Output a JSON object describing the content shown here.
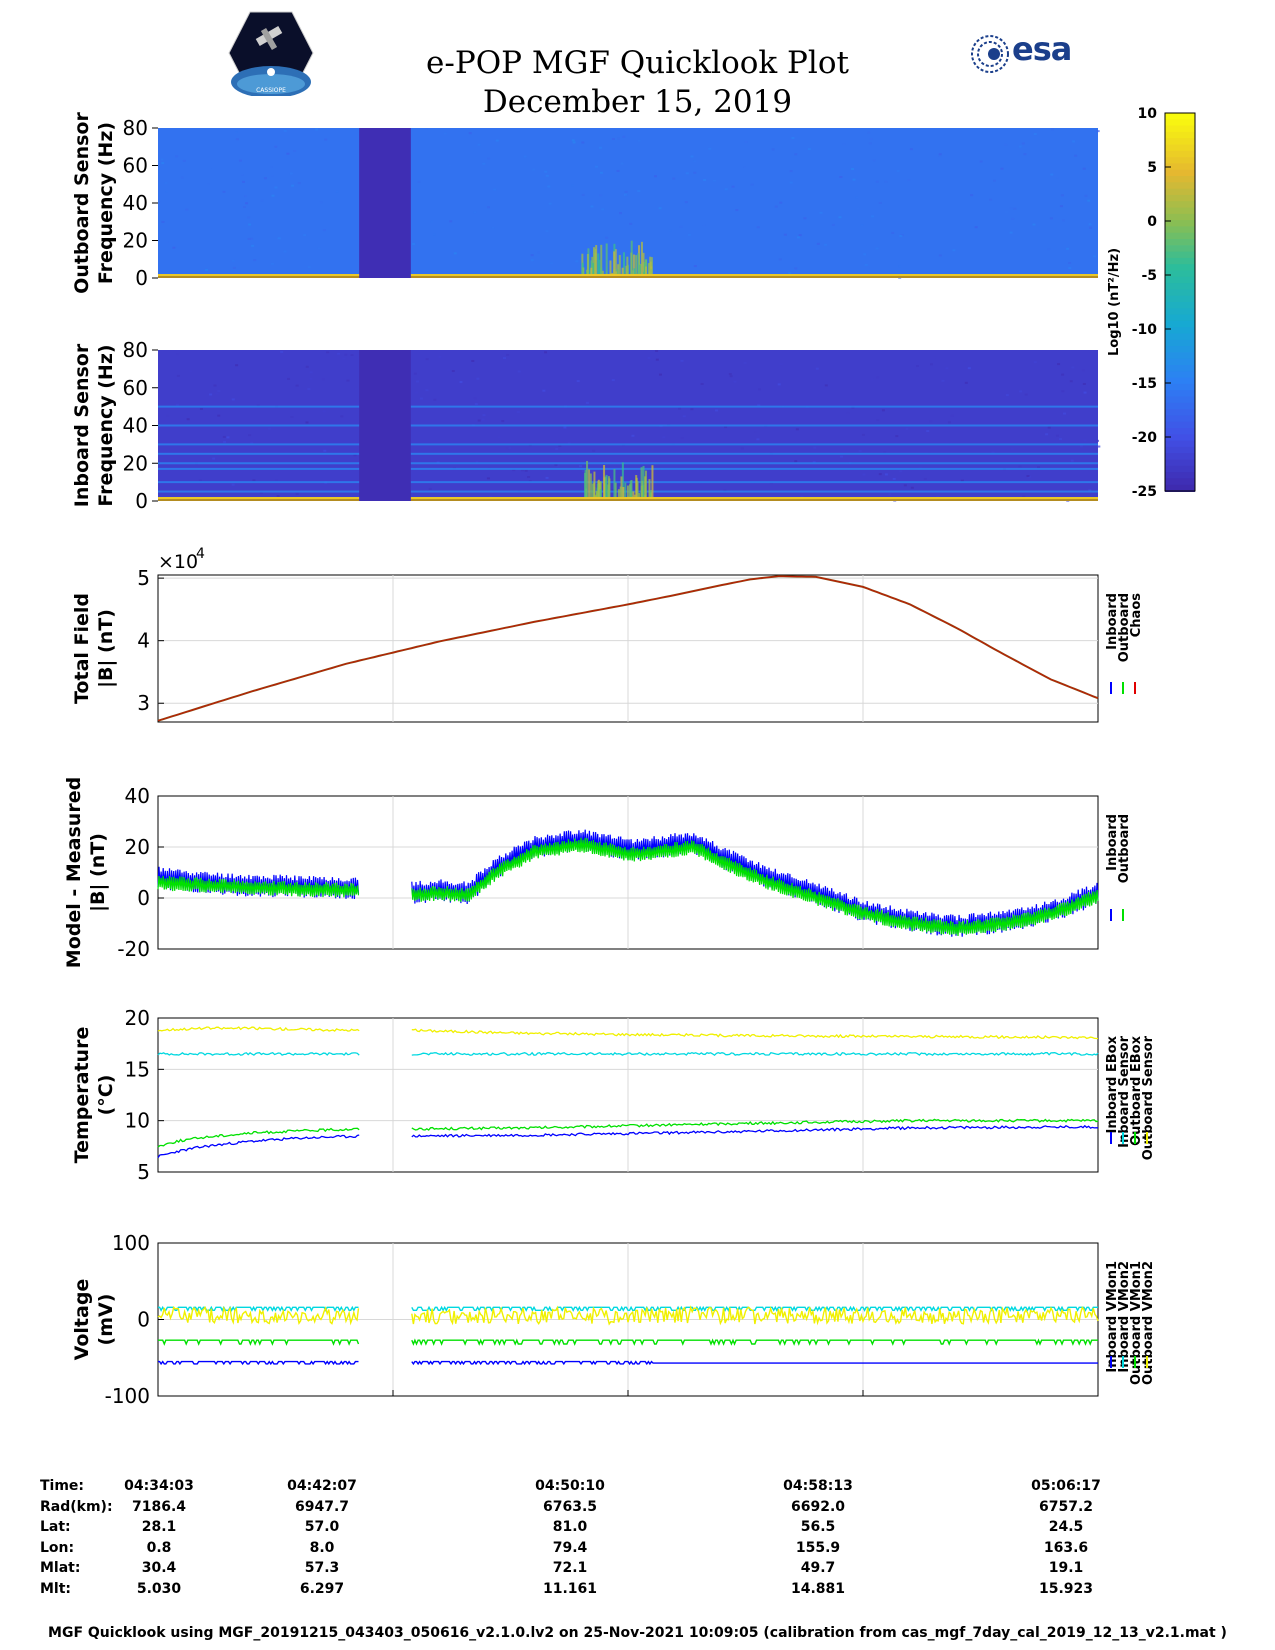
{
  "header": {
    "title": "e-POP MGF Quicklook Plot",
    "date": "December 15, 2019",
    "left_logo_text": "CASSIOPE",
    "right_logo_text": "esa"
  },
  "colorbar": {
    "label": "Log10 (nT²/Hz)",
    "ticks": [
      10,
      5,
      0,
      -5,
      -10,
      -15,
      -20,
      -25
    ],
    "range": [
      -25,
      10
    ]
  },
  "chart_data": [
    {
      "type": "heatmap",
      "id": "outboard",
      "ylabel_line1": "Outboard Sensor",
      "ylabel_line2": "Frequency (Hz)",
      "ylim": [
        0,
        80
      ],
      "yticks": [
        0,
        20,
        40,
        60,
        80
      ],
      "background_level": -16,
      "gap_time_frac": [
        0.214,
        0.269
      ],
      "gap_level": -24,
      "burst_time_frac": [
        0.45,
        0.525
      ],
      "burst_max_freq": 22
    },
    {
      "type": "heatmap",
      "id": "inboard",
      "ylabel_line1": "Inboard Sensor",
      "ylabel_line2": "Frequency (Hz)",
      "ylim": [
        0,
        80
      ],
      "yticks": [
        0,
        20,
        40,
        60,
        80
      ],
      "background_level": -22,
      "harmonic_lines_hz": [
        5,
        10,
        17,
        20,
        25,
        30,
        40,
        50
      ],
      "gap_time_frac": [
        0.214,
        0.269
      ],
      "burst_time_frac": [
        0.45,
        0.525
      ]
    },
    {
      "type": "line",
      "id": "total-field",
      "ylabel_line1": "Total Field",
      "ylabel_line2": "|B| (nT)",
      "multiplier": "×10",
      "multiplier_exp": "4",
      "ylim": [
        2.7,
        5.05
      ],
      "yticks": [
        3,
        4,
        5
      ],
      "legend": [
        "Inboard",
        "Outboard",
        "Chaos"
      ],
      "legend_colors": [
        "#0000ff",
        "#00e000",
        "#e00000"
      ],
      "x_frac": [
        0,
        0.1,
        0.2,
        0.3,
        0.4,
        0.5,
        0.55,
        0.6,
        0.63,
        0.66,
        0.7,
        0.75,
        0.8,
        0.85,
        0.9,
        0.95,
        1.0
      ],
      "series": [
        {
          "name": "Chaos",
          "values": [
            2.72,
            3.19,
            3.63,
            3.99,
            4.3,
            4.58,
            4.73,
            4.89,
            4.98,
            5.03,
            5.02,
            4.86,
            4.58,
            4.2,
            3.78,
            3.38,
            3.08
          ]
        }
      ]
    },
    {
      "type": "line",
      "id": "model-measured",
      "ylabel_line1": "Model - Measured",
      "ylabel_line2": "|B| (nT)",
      "ylim": [
        -20,
        40
      ],
      "yticks": [
        -20,
        0,
        20,
        40
      ],
      "legend": [
        "Inboard",
        "Outboard"
      ],
      "legend_colors": [
        "#0000ff",
        "#00e000"
      ],
      "gap_time_frac": [
        0.214,
        0.269
      ],
      "x_frac": [
        0,
        0.05,
        0.1,
        0.15,
        0.214,
        0.27,
        0.3,
        0.33,
        0.36,
        0.4,
        0.45,
        0.5,
        0.53,
        0.57,
        0.6,
        0.65,
        0.7,
        0.75,
        0.8,
        0.85,
        0.88,
        0.92,
        0.96,
        1.0
      ],
      "series": [
        {
          "name": "Inboard",
          "values": [
            8,
            6,
            5,
            4.5,
            4,
            2,
            3,
            2,
            12,
            20,
            23,
            19,
            20,
            22,
            16,
            8,
            2,
            -5,
            -9,
            -11,
            -10,
            -8,
            -4,
            2
          ]
        },
        {
          "name": "Outboard",
          "values": [
            6,
            5,
            4,
            3.5,
            3,
            1,
            2,
            1,
            10,
            18,
            21,
            17,
            18,
            20,
            14,
            6,
            0,
            -6,
            -10,
            -12,
            -11,
            -9,
            -5,
            1
          ]
        }
      ]
    },
    {
      "type": "line",
      "id": "temperature",
      "ylabel_line1": "Temperature",
      "ylabel_line2": "(°C)",
      "ylim": [
        5,
        20
      ],
      "yticks": [
        5,
        10,
        15,
        20
      ],
      "legend": [
        "Inboard EBox",
        "Inboard Sensor",
        "Outboard EBox",
        "Outboard Sensor"
      ],
      "legend_colors": [
        "#0000ff",
        "#00d8e0",
        "#00e000",
        "#f0f000"
      ],
      "gap_time_frac": [
        0.214,
        0.269
      ],
      "x_frac": [
        0,
        0.02,
        0.05,
        0.1,
        0.15,
        0.214,
        0.27,
        0.4,
        0.6,
        0.8,
        1.0
      ],
      "series": [
        {
          "name": "Inboard EBox",
          "values": [
            6.5,
            7.0,
            7.5,
            8.0,
            8.3,
            8.5,
            8.5,
            8.6,
            8.9,
            9.3,
            9.4
          ]
        },
        {
          "name": "Inboard Sensor",
          "values": [
            16.5,
            16.5,
            16.5,
            16.5,
            16.5,
            16.5,
            16.5,
            16.5,
            16.5,
            16.5,
            16.5
          ]
        },
        {
          "name": "Outboard EBox",
          "values": [
            7.5,
            8.0,
            8.4,
            8.8,
            9.0,
            9.2,
            9.2,
            9.3,
            9.7,
            10.0,
            10.0
          ]
        },
        {
          "name": "Outboard Sensor",
          "values": [
            18.8,
            18.9,
            19.0,
            19.0,
            18.9,
            18.8,
            18.8,
            18.5,
            18.3,
            18.2,
            18.1
          ]
        }
      ]
    },
    {
      "type": "line",
      "id": "voltage",
      "ylabel_line1": "Voltage",
      "ylabel_line2": "(mV)",
      "ylim": [
        -100,
        100
      ],
      "yticks": [
        -100,
        0,
        100
      ],
      "legend": [
        "Inboard VMon1",
        "Inboard VMon2",
        "Outboard VMon1",
        "Outboard VMon2"
      ],
      "legend_colors": [
        "#0000ff",
        "#00d8e0",
        "#00e000",
        "#f0f000"
      ],
      "gap_time_frac": [
        0.214,
        0.269
      ],
      "series": [
        {
          "name": "Inboard VMon1",
          "level": -55,
          "level_after": -57
        },
        {
          "name": "Inboard VMon2",
          "level": 16
        },
        {
          "name": "Outboard VMon1",
          "level": -27
        },
        {
          "name": "Outboard VMon2",
          "level": 5
        }
      ]
    }
  ],
  "xaxis": {
    "labels": [
      "Time:",
      "Rad(km):",
      "Lat:",
      "Lon:",
      "Mlat:",
      "Mlt:"
    ],
    "columns": [
      [
        "04:34:03",
        "7186.4",
        "28.1",
        "0.8",
        "30.4",
        "5.030"
      ],
      [
        "04:42:07",
        "6947.7",
        "57.0",
        "8.0",
        "57.3",
        "6.297"
      ],
      [
        "04:50:10",
        "6763.5",
        "81.0",
        "79.4",
        "72.1",
        "11.161"
      ],
      [
        "04:58:13",
        "6692.0",
        "56.5",
        "155.9",
        "49.7",
        "14.881"
      ],
      [
        "05:06:17",
        "6757.2",
        "24.5",
        "163.6",
        "19.1",
        "15.923"
      ]
    ]
  },
  "footer": "MGF Quicklook using MGF_20191215_043403_050616_v2.1.0.lv2 on 25-Nov-2021 10:09:05 (calibration from cas_mgf_7day_cal_2019_12_13_v2.1.mat )"
}
